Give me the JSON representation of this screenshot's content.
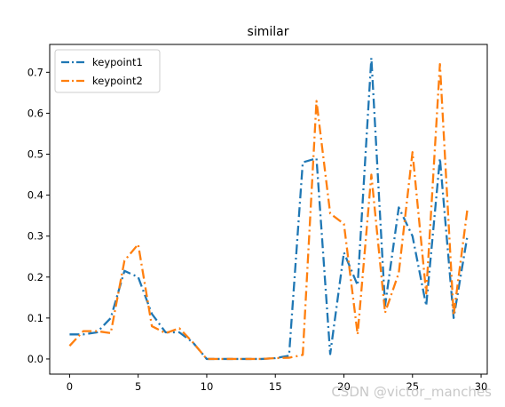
{
  "chart_data": {
    "type": "line",
    "title": "similar",
    "xlabel": "",
    "ylabel": "",
    "xlim": [
      -1.45,
      30.45
    ],
    "ylim": [
      -0.037,
      0.768
    ],
    "x_ticks": [
      0,
      5,
      10,
      15,
      20,
      25,
      30
    ],
    "y_ticks": [
      0.0,
      0.1,
      0.2,
      0.3,
      0.4,
      0.5,
      0.6,
      0.7
    ],
    "legend_position": "top-left",
    "grid": false,
    "x": [
      0,
      1,
      2,
      3,
      4,
      5,
      6,
      7,
      8,
      9,
      10,
      11,
      12,
      13,
      14,
      15,
      16,
      17,
      18,
      19,
      20,
      21,
      22,
      23,
      24,
      25,
      26,
      27,
      28,
      29
    ],
    "series": [
      {
        "name": "keypoint1",
        "color": "#1f77b4",
        "linestyle": "dashdot",
        "values": [
          0.06,
          0.06,
          0.065,
          0.1,
          0.215,
          0.2,
          0.11,
          0.065,
          0.065,
          0.04,
          0.0,
          0.0,
          0.0,
          0.0,
          0.0,
          0.002,
          0.008,
          0.48,
          0.49,
          0.012,
          0.26,
          0.18,
          0.735,
          0.13,
          0.37,
          0.3,
          0.13,
          0.49,
          0.1,
          0.3
        ]
      },
      {
        "name": "keypoint2",
        "color": "#ff7f0e",
        "linestyle": "dashdot",
        "values": [
          0.032,
          0.068,
          0.068,
          0.063,
          0.24,
          0.28,
          0.08,
          0.063,
          0.075,
          0.04,
          0.0,
          0.0,
          0.0,
          0.0,
          0.0,
          0.002,
          0.003,
          0.01,
          0.63,
          0.355,
          0.33,
          0.06,
          0.45,
          0.113,
          0.21,
          0.505,
          0.16,
          0.72,
          0.107,
          0.365
        ]
      }
    ]
  },
  "watermark": "CSDN @victor_manches"
}
